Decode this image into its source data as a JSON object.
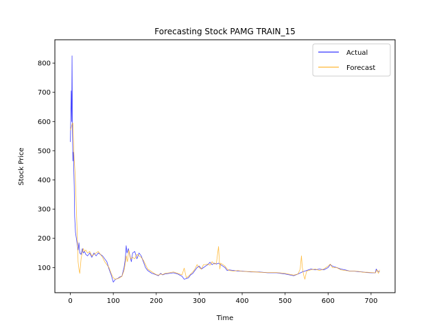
{
  "chart_data": {
    "type": "line",
    "title": "Forecasting Stock PAMG TRAIN_15",
    "xlabel": "Time",
    "ylabel": "Stock Price",
    "xlim": [
      -36,
      756
    ],
    "ylim": [
      14,
      880
    ],
    "x_ticks": [
      0,
      100,
      200,
      300,
      400,
      500,
      600,
      700
    ],
    "y_ticks": [
      100,
      200,
      300,
      400,
      500,
      600,
      700,
      800
    ],
    "grid": false,
    "legend": "upper-right",
    "series": [
      {
        "name": "Actual",
        "color": "#0000ff",
        "points": [
          [
            0,
            530
          ],
          [
            2,
            705
          ],
          [
            3,
            600
          ],
          [
            4,
            825
          ],
          [
            5,
            560
          ],
          [
            6,
            465
          ],
          [
            7,
            495
          ],
          [
            9,
            380
          ],
          [
            10,
            275
          ],
          [
            12,
            220
          ],
          [
            14,
            200
          ],
          [
            16,
            180
          ],
          [
            18,
            160
          ],
          [
            20,
            185
          ],
          [
            22,
            150
          ],
          [
            25,
            145
          ],
          [
            28,
            165
          ],
          [
            30,
            150
          ],
          [
            33,
            155
          ],
          [
            36,
            145
          ],
          [
            40,
            140
          ],
          [
            45,
            150
          ],
          [
            50,
            135
          ],
          [
            55,
            150
          ],
          [
            60,
            140
          ],
          [
            65,
            150
          ],
          [
            70,
            145
          ],
          [
            75,
            140
          ],
          [
            80,
            130
          ],
          [
            85,
            120
          ],
          [
            90,
            95
          ],
          [
            95,
            75
          ],
          [
            100,
            50
          ],
          [
            105,
            60
          ],
          [
            110,
            62
          ],
          [
            115,
            68
          ],
          [
            120,
            70
          ],
          [
            125,
            100
          ],
          [
            128,
            130
          ],
          [
            130,
            175
          ],
          [
            132,
            150
          ],
          [
            135,
            165
          ],
          [
            138,
            145
          ],
          [
            142,
            120
          ],
          [
            145,
            150
          ],
          [
            150,
            155
          ],
          [
            155,
            130
          ],
          [
            160,
            150
          ],
          [
            165,
            140
          ],
          [
            170,
            120
          ],
          [
            175,
            100
          ],
          [
            180,
            90
          ],
          [
            185,
            85
          ],
          [
            190,
            80
          ],
          [
            195,
            78
          ],
          [
            200,
            75
          ],
          [
            205,
            72
          ],
          [
            210,
            80
          ],
          [
            215,
            75
          ],
          [
            220,
            78
          ],
          [
            230,
            80
          ],
          [
            240,
            82
          ],
          [
            250,
            78
          ],
          [
            260,
            70
          ],
          [
            265,
            60
          ],
          [
            270,
            62
          ],
          [
            275,
            65
          ],
          [
            280,
            75
          ],
          [
            285,
            80
          ],
          [
            290,
            90
          ],
          [
            295,
            100
          ],
          [
            300,
            105
          ],
          [
            305,
            95
          ],
          [
            310,
            100
          ],
          [
            315,
            105
          ],
          [
            320,
            110
          ],
          [
            325,
            118
          ],
          [
            330,
            110
          ],
          [
            335,
            115
          ],
          [
            340,
            112
          ],
          [
            345,
            115
          ],
          [
            350,
            110
          ],
          [
            355,
            105
          ],
          [
            360,
            100
          ],
          [
            365,
            90
          ],
          [
            370,
            92
          ],
          [
            380,
            90
          ],
          [
            390,
            88
          ],
          [
            400,
            88
          ],
          [
            420,
            85
          ],
          [
            440,
            85
          ],
          [
            460,
            82
          ],
          [
            480,
            82
          ],
          [
            500,
            78
          ],
          [
            510,
            75
          ],
          [
            520,
            72
          ],
          [
            530,
            78
          ],
          [
            540,
            85
          ],
          [
            550,
            90
          ],
          [
            560,
            95
          ],
          [
            570,
            92
          ],
          [
            580,
            95
          ],
          [
            590,
            92
          ],
          [
            600,
            100
          ],
          [
            605,
            110
          ],
          [
            610,
            105
          ],
          [
            620,
            100
          ],
          [
            630,
            95
          ],
          [
            640,
            92
          ],
          [
            650,
            88
          ],
          [
            660,
            88
          ],
          [
            670,
            86
          ],
          [
            680,
            85
          ],
          [
            690,
            83
          ],
          [
            700,
            82
          ],
          [
            710,
            82
          ],
          [
            712,
            95
          ],
          [
            715,
            88
          ],
          [
            720,
            85
          ]
        ]
      },
      {
        "name": "Forecast",
        "color": "#ffa500",
        "points": [
          [
            0,
            570
          ],
          [
            2,
            580
          ],
          [
            4,
            590
          ],
          [
            6,
            595
          ],
          [
            8,
            500
          ],
          [
            9,
            470
          ],
          [
            11,
            425
          ],
          [
            12,
            390
          ],
          [
            14,
            300
          ],
          [
            16,
            220
          ],
          [
            18,
            120
          ],
          [
            20,
            95
          ],
          [
            22,
            80
          ],
          [
            25,
            130
          ],
          [
            28,
            155
          ],
          [
            30,
            165
          ],
          [
            33,
            155
          ],
          [
            36,
            160
          ],
          [
            40,
            150
          ],
          [
            45,
            155
          ],
          [
            50,
            140
          ],
          [
            55,
            145
          ],
          [
            60,
            150
          ],
          [
            65,
            155
          ],
          [
            70,
            145
          ],
          [
            75,
            135
          ],
          [
            80,
            120
          ],
          [
            85,
            110
          ],
          [
            90,
            100
          ],
          [
            95,
            80
          ],
          [
            100,
            65
          ],
          [
            105,
            60
          ],
          [
            110,
            62
          ],
          [
            115,
            65
          ],
          [
            120,
            70
          ],
          [
            125,
            90
          ],
          [
            128,
            115
          ],
          [
            130,
            140
          ],
          [
            133,
            120
          ],
          [
            136,
            160
          ],
          [
            140,
            130
          ],
          [
            145,
            135
          ],
          [
            150,
            130
          ],
          [
            155,
            145
          ],
          [
            160,
            140
          ],
          [
            165,
            135
          ],
          [
            170,
            125
          ],
          [
            175,
            110
          ],
          [
            180,
            95
          ],
          [
            185,
            90
          ],
          [
            190,
            85
          ],
          [
            195,
            80
          ],
          [
            200,
            76
          ],
          [
            205,
            74
          ],
          [
            210,
            78
          ],
          [
            215,
            76
          ],
          [
            220,
            80
          ],
          [
            230,
            82
          ],
          [
            240,
            85
          ],
          [
            250,
            80
          ],
          [
            260,
            75
          ],
          [
            265,
            98
          ],
          [
            270,
            65
          ],
          [
            275,
            70
          ],
          [
            280,
            78
          ],
          [
            285,
            85
          ],
          [
            290,
            95
          ],
          [
            295,
            110
          ],
          [
            300,
            100
          ],
          [
            305,
            95
          ],
          [
            310,
            110
          ],
          [
            315,
            110
          ],
          [
            320,
            112
          ],
          [
            325,
            108
          ],
          [
            330,
            120
          ],
          [
            335,
            112
          ],
          [
            340,
            115
          ],
          [
            345,
            172
          ],
          [
            348,
            95
          ],
          [
            350,
            115
          ],
          [
            355,
            110
          ],
          [
            360,
            105
          ],
          [
            365,
            95
          ],
          [
            370,
            90
          ],
          [
            380,
            88
          ],
          [
            390,
            90
          ],
          [
            400,
            87
          ],
          [
            420,
            86
          ],
          [
            440,
            84
          ],
          [
            460,
            83
          ],
          [
            480,
            83
          ],
          [
            500,
            80
          ],
          [
            510,
            77
          ],
          [
            520,
            74
          ],
          [
            530,
            78
          ],
          [
            535,
            95
          ],
          [
            538,
            140
          ],
          [
            540,
            100
          ],
          [
            543,
            75
          ],
          [
            546,
            60
          ],
          [
            550,
            88
          ],
          [
            560,
            92
          ],
          [
            570,
            95
          ],
          [
            580,
            90
          ],
          [
            590,
            95
          ],
          [
            600,
            105
          ],
          [
            605,
            112
          ],
          [
            610,
            100
          ],
          [
            620,
            100
          ],
          [
            630,
            92
          ],
          [
            640,
            90
          ],
          [
            650,
            88
          ],
          [
            660,
            88
          ],
          [
            670,
            87
          ],
          [
            680,
            84
          ],
          [
            690,
            84
          ],
          [
            700,
            83
          ],
          [
            710,
            82
          ],
          [
            714,
            92
          ],
          [
            717,
            80
          ],
          [
            720,
            92
          ]
        ]
      }
    ]
  }
}
